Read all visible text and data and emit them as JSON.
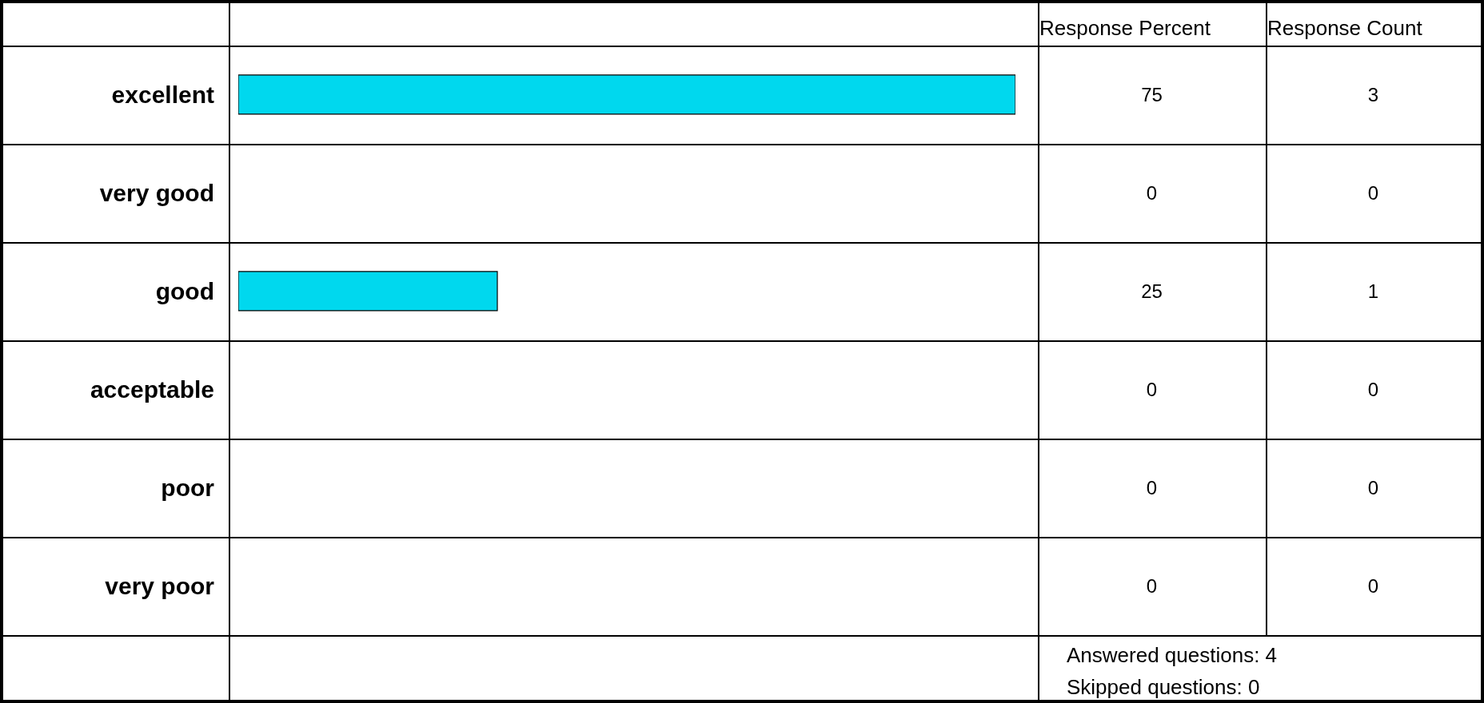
{
  "chart_data": {
    "type": "bar",
    "orientation": "horizontal",
    "categories": [
      "excellent",
      "very good",
      "good",
      "acceptable",
      "poor",
      "very poor"
    ],
    "values": [
      75,
      0,
      25,
      0,
      0,
      0
    ],
    "color": "#00d8ee",
    "data_labels": true,
    "tick_labels": "y",
    "annotations": [
      "Response Percent",
      "Response Count",
      "3",
      "0",
      "1",
      "0",
      "0",
      "0",
      "Answered questions: 4",
      "Skipped questions: 0"
    ]
  }
}
